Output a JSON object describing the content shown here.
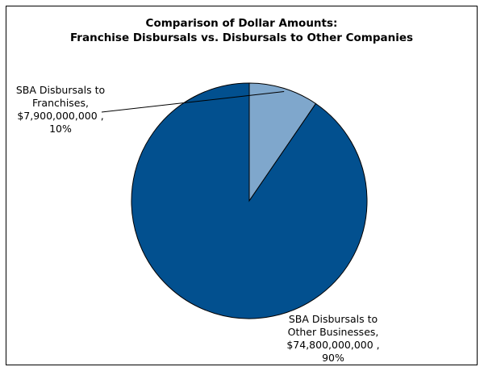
{
  "chart_data": {
    "type": "pie",
    "title": [
      "Comparison of Dollar Amounts:",
      "Franchise Disbursals vs. Disbursals to Other Companies"
    ],
    "slices": [
      {
        "label_lines": [
          "SBA Disbursals to",
          "Franchises,",
          "$7,900,000,000 ,",
          "10%"
        ],
        "value": 7900000000,
        "percent": 10,
        "color": "#7fa7cc"
      },
      {
        "label_lines": [
          "SBA Disbursals to",
          "Other Businesses,",
          "$74,800,000,000 ,",
          "90%"
        ],
        "value": 74800000000,
        "percent": 90,
        "color": "#02508f"
      }
    ],
    "start_angle": "12 o'clock",
    "direction": "clockwise",
    "legend": "none"
  }
}
